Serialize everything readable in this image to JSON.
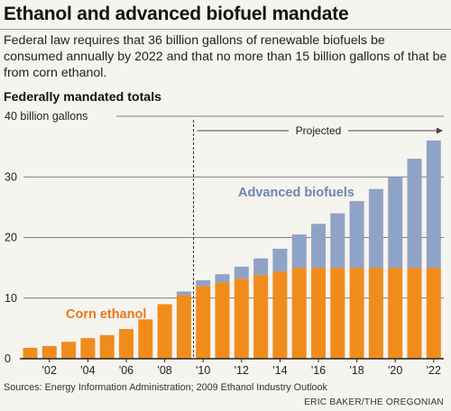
{
  "header": {
    "title": "Ethanol and advanced biofuel mandate",
    "subtitle": "Federal law requires that 36 billion gallons of renewable biofuels be consumed annually by 2022 and that no more than 15 billion gallons of that be from corn ethanol."
  },
  "footer": {
    "sources": "Sources: Energy Information Administration; 2009 Ethanol Industry Outlook",
    "credit": "ERIC BAKER/THE OREGONIAN"
  },
  "colors": {
    "corn": "#f08c1c",
    "advanced": "#8fa3c6",
    "corn_label": "#e9781a",
    "advanced_label": "#6f86b3",
    "axis": "#222222",
    "gridline": "#5a5a5a"
  },
  "chart_data": {
    "type": "bar",
    "stacked": true,
    "title": "Federally mandated totals",
    "ylabel": "40 billion gallons",
    "ylim": [
      0,
      40
    ],
    "yticks": [
      0,
      10,
      20,
      30,
      40
    ],
    "ytick_labels": [
      "0",
      "10",
      "20",
      "30",
      "40 billion gallons"
    ],
    "x": [
      2001,
      2002,
      2003,
      2004,
      2005,
      2006,
      2007,
      2008,
      2009,
      2010,
      2011,
      2012,
      2013,
      2014,
      2015,
      2016,
      2017,
      2018,
      2019,
      2020,
      2021,
      2022
    ],
    "xtick_labels": [
      "'02",
      "'04",
      "'06",
      "'08",
      "'10",
      "'12",
      "'14",
      "'16",
      "'18",
      "'20",
      "'22"
    ],
    "xtick_years": [
      2002,
      2004,
      2006,
      2008,
      2010,
      2012,
      2014,
      2016,
      2018,
      2020,
      2022
    ],
    "series": [
      {
        "name": "Corn ethanol",
        "values": [
          1.8,
          2.1,
          2.8,
          3.4,
          3.9,
          4.9,
          6.5,
          9.0,
          10.5,
          12.0,
          12.6,
          13.2,
          13.8,
          14.4,
          15.0,
          15.0,
          15.0,
          15.0,
          15.0,
          15.0,
          15.0,
          15.0
        ]
      },
      {
        "name": "Advanced biofuels",
        "values": [
          0,
          0,
          0,
          0,
          0,
          0,
          0,
          0,
          0.6,
          0.95,
          1.35,
          2.0,
          2.75,
          3.75,
          5.5,
          7.25,
          9.0,
          11.0,
          13.0,
          15.0,
          18.0,
          21.0
        ]
      }
    ],
    "projected_label": "Projected",
    "projected_from": 2009.5
  }
}
